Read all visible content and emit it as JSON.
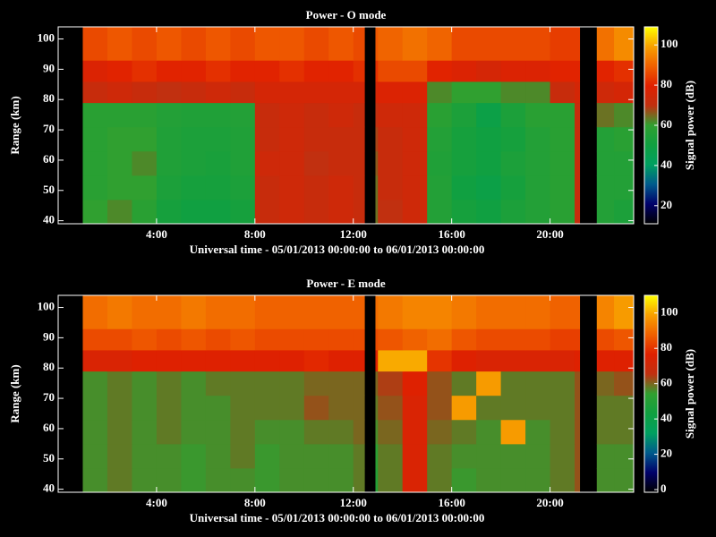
{
  "chart_data": [
    {
      "type": "heatmap",
      "title": "Power - O mode",
      "xlabel": "Universal time - 05/01/2013 00:00:00 to 06/01/2013 00:00:00",
      "ylabel": "Range (km)",
      "colorbar_label": "Signal power (dB)",
      "xlim": [
        0,
        23.4
      ],
      "xticks": [
        {
          "value": 4,
          "label": "4:00"
        },
        {
          "value": 8,
          "label": "8:00"
        },
        {
          "value": 12,
          "label": "12:00"
        },
        {
          "value": 16,
          "label": "16:00"
        },
        {
          "value": 20,
          "label": "20:00"
        }
      ],
      "ylim": [
        39,
        104
      ],
      "yticks": [
        40,
        50,
        60,
        70,
        80,
        90,
        100
      ],
      "clim": [
        11,
        109
      ],
      "cticks": [
        20,
        40,
        60,
        80,
        100
      ],
      "colormap": [
        "#000000",
        "#00006a",
        "#005a8c",
        "#00a060",
        "#10a040",
        "#30a030",
        "#c03010",
        "#e02000",
        "#f06000",
        "#f8a000",
        "#ffff00"
      ],
      "x_edges": [
        1,
        2,
        3,
        4,
        5,
        6,
        7,
        8,
        9,
        10,
        11,
        12,
        12.45,
        12.9,
        13,
        14,
        15,
        16,
        17,
        18,
        19,
        20,
        21,
        21.2,
        21.9,
        22.6,
        23.4
      ],
      "y_edges": [
        39,
        47,
        55,
        63,
        71,
        79,
        86,
        93,
        104
      ],
      "z": [
        [
          60,
          62,
          58,
          52,
          50,
          50,
          52,
          72,
          74,
          72,
          74,
          72,
          null,
          64,
          70,
          74,
          56,
          52,
          50,
          54,
          56,
          58,
          72,
          null,
          56,
          54
        ],
        [
          58,
          60,
          60,
          54,
          52,
          52,
          54,
          72,
          74,
          72,
          74,
          72,
          null,
          64,
          72,
          74,
          56,
          50,
          48,
          52,
          56,
          58,
          72,
          null,
          56,
          56
        ],
        [
          58,
          60,
          62,
          55,
          54,
          53,
          55,
          74,
          74,
          70,
          72,
          72,
          null,
          66,
          72,
          74,
          55,
          52,
          50,
          54,
          56,
          58,
          72,
          null,
          56,
          56
        ],
        [
          58,
          60,
          60,
          55,
          54,
          54,
          55,
          72,
          74,
          72,
          72,
          72,
          null,
          68,
          72,
          74,
          56,
          52,
          50,
          52,
          56,
          58,
          72,
          null,
          56,
          58
        ],
        [
          58,
          58,
          58,
          56,
          55,
          55,
          56,
          72,
          74,
          72,
          74,
          72,
          null,
          70,
          74,
          74,
          58,
          54,
          48,
          54,
          58,
          58,
          72,
          null,
          64,
          62
        ],
        [
          72,
          74,
          72,
          70,
          72,
          74,
          72,
          76,
          76,
          76,
          76,
          76,
          null,
          76,
          78,
          78,
          62,
          60,
          60,
          62,
          62,
          72,
          76,
          null,
          74,
          76
        ],
        [
          78,
          80,
          82,
          80,
          80,
          82,
          80,
          80,
          82,
          80,
          80,
          82,
          null,
          82,
          86,
          86,
          80,
          78,
          76,
          78,
          78,
          80,
          80,
          null,
          80,
          82
        ],
        [
          86,
          88,
          86,
          88,
          86,
          88,
          86,
          88,
          88,
          86,
          88,
          86,
          null,
          88,
          90,
          92,
          90,
          86,
          86,
          86,
          86,
          84,
          84,
          null,
          92,
          96
        ]
      ]
    },
    {
      "type": "heatmap",
      "title": "Power - E mode",
      "xlabel": "Universal time - 05/01/2013 00:00:00 to 06/01/2013 00:00:00",
      "ylabel": "Range (km)",
      "colorbar_label": "Signal power (dB)",
      "xlim": [
        0,
        23.4
      ],
      "xticks": [
        {
          "value": 4,
          "label": "4:00"
        },
        {
          "value": 8,
          "label": "8:00"
        },
        {
          "value": 12,
          "label": "12:00"
        },
        {
          "value": 16,
          "label": "16:00"
        },
        {
          "value": 20,
          "label": "20:00"
        }
      ],
      "ylim": [
        39,
        104
      ],
      "yticks": [
        40,
        50,
        60,
        70,
        80,
        90,
        100
      ],
      "clim": [
        -1.5,
        110
      ],
      "cticks": [
        0,
        20,
        40,
        60,
        80,
        100
      ],
      "colormap": [
        "#000000",
        "#00006a",
        "#005a8c",
        "#00a060",
        "#10a040",
        "#30a030",
        "#c03010",
        "#e02000",
        "#f06000",
        "#f8a000",
        "#ffff00"
      ],
      "x_edges": [
        1,
        2,
        3,
        4,
        5,
        6,
        7,
        8,
        9,
        10,
        11,
        12,
        12.45,
        12.9,
        13,
        14,
        15,
        16,
        17,
        18,
        19,
        20,
        21,
        21.2,
        21.9,
        22.6,
        23.4
      ],
      "y_edges": [
        39,
        47,
        55,
        63,
        71,
        79,
        86,
        93,
        104
      ],
      "z": [
        [
          56,
          58,
          56,
          56,
          55,
          56,
          56,
          55,
          56,
          56,
          56,
          58,
          null,
          50,
          58,
          74,
          58,
          55,
          56,
          56,
          56,
          58,
          62,
          null,
          56,
          56
        ],
        [
          56,
          58,
          56,
          56,
          55,
          56,
          58,
          55,
          56,
          56,
          56,
          58,
          null,
          52,
          58,
          74,
          58,
          56,
          56,
          56,
          56,
          58,
          62,
          null,
          56,
          56
        ],
        [
          56,
          58,
          56,
          58,
          56,
          56,
          58,
          56,
          56,
          58,
          58,
          60,
          null,
          56,
          60,
          74,
          60,
          58,
          56,
          98,
          56,
          58,
          62,
          null,
          58,
          58
        ],
        [
          56,
          58,
          56,
          58,
          56,
          56,
          58,
          58,
          58,
          62,
          60,
          60,
          null,
          58,
          62,
          74,
          62,
          98,
          58,
          58,
          58,
          58,
          62,
          null,
          58,
          58
        ],
        [
          56,
          58,
          56,
          58,
          56,
          58,
          58,
          58,
          58,
          60,
          60,
          60,
          null,
          60,
          64,
          76,
          62,
          58,
          98,
          58,
          58,
          58,
          62,
          null,
          60,
          62
        ],
        [
          74,
          74,
          76,
          76,
          76,
          76,
          76,
          76,
          76,
          78,
          76,
          76,
          null,
          76,
          100,
          100,
          80,
          76,
          74,
          74,
          74,
          74,
          76,
          null,
          76,
          76
        ],
        [
          84,
          84,
          86,
          84,
          86,
          84,
          86,
          84,
          84,
          84,
          84,
          84,
          null,
          84,
          86,
          88,
          90,
          86,
          84,
          84,
          84,
          82,
          82,
          null,
          84,
          86
        ],
        [
          90,
          92,
          90,
          90,
          92,
          90,
          90,
          88,
          88,
          88,
          88,
          88,
          null,
          90,
          92,
          94,
          94,
          92,
          90,
          90,
          90,
          88,
          88,
          null,
          94,
          98
        ]
      ]
    }
  ]
}
